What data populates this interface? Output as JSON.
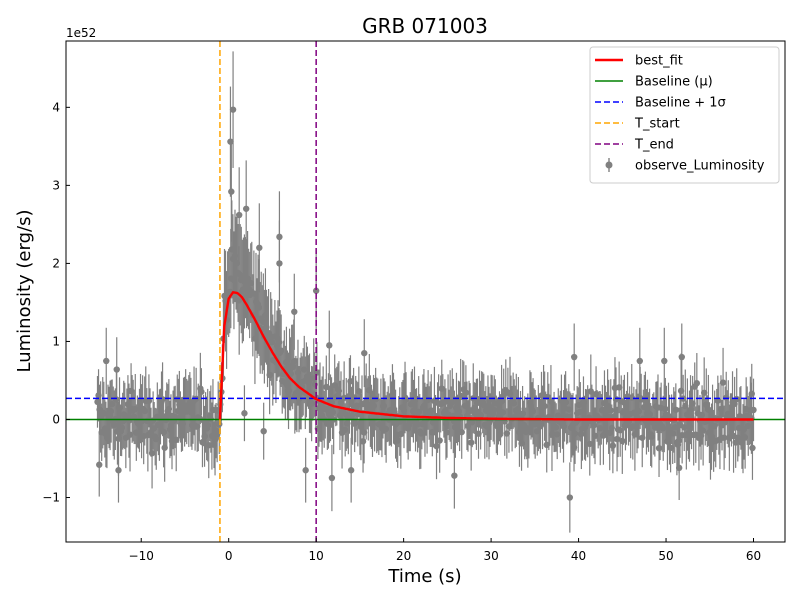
{
  "chart_data": {
    "type": "scatter",
    "title": "GRB 071003",
    "xlabel": "Time (s)",
    "ylabel": "Luminosity (erg/s)",
    "y_offset_label": "1e52",
    "xlim": [
      -18.6,
      63.6
    ],
    "ylim": [
      -1.57,
      4.85
    ],
    "x_ticks": [
      -10,
      0,
      10,
      20,
      30,
      40,
      50,
      60
    ],
    "x_tick_labels": [
      "−10",
      "0",
      "10",
      "20",
      "30",
      "40",
      "50",
      "60"
    ],
    "y_ticks": [
      -1,
      0,
      1,
      2,
      3,
      4
    ],
    "y_tick_labels": [
      "−1",
      "0",
      "1",
      "2",
      "3",
      "4"
    ],
    "grid": false,
    "legend_placement": "top-right",
    "legend": [
      {
        "label": "best_fit",
        "kind": "line",
        "color": "#ff0000",
        "dashed": false
      },
      {
        "label": "Baseline (μ)",
        "kind": "line",
        "color": "#008000",
        "dashed": false
      },
      {
        "label": "Baseline + 1σ",
        "kind": "line",
        "color": "#0000ff",
        "dashed": true
      },
      {
        "label": "T_start",
        "kind": "line",
        "color": "#ffa500",
        "dashed": true
      },
      {
        "label": "T_end",
        "kind": "line",
        "color": "#800080",
        "dashed": true
      },
      {
        "label": "observe_Luminosity",
        "kind": "errorbar",
        "color": "#808080",
        "dashed": false
      }
    ],
    "baseline": 0.0,
    "baseline_plus_sigma": 0.27,
    "t_start": -1.0,
    "t_end": 10.0,
    "best_fit": {
      "name": "best_fit",
      "x": [
        -1.0,
        -0.5,
        0.0,
        0.5,
        1.0,
        1.5,
        2.0,
        3.0,
        4.0,
        5.0,
        6.0,
        7.0,
        8.0,
        10.0,
        12.0,
        15.0,
        20.0,
        25.0,
        30.0,
        40.0,
        50.0,
        60.0
      ],
      "y": [
        0.0,
        1.2,
        1.55,
        1.63,
        1.62,
        1.57,
        1.48,
        1.28,
        1.06,
        0.86,
        0.68,
        0.53,
        0.42,
        0.26,
        0.17,
        0.1,
        0.04,
        0.02,
        0.01,
        0.0,
        0.0,
        0.0
      ]
    },
    "observed": {
      "name": "observe_Luminosity",
      "color": "#808080",
      "x_range": [
        -15,
        60
      ],
      "notable_points": [
        {
          "x": -14.8,
          "y": -0.58
        },
        {
          "x": -12.6,
          "y": -0.65
        },
        {
          "x": -12.8,
          "y": 0.64
        },
        {
          "x": -14.0,
          "y": 0.75
        },
        {
          "x": 0.2,
          "y": 3.56
        },
        {
          "x": 0.5,
          "y": 3.97
        },
        {
          "x": 0.3,
          "y": 2.92
        },
        {
          "x": 1.2,
          "y": 2.62
        },
        {
          "x": 2.0,
          "y": 2.7
        },
        {
          "x": 3.5,
          "y": 2.2
        },
        {
          "x": 5.8,
          "y": 2.34
        },
        {
          "x": 5.8,
          "y": 2.0
        },
        {
          "x": 1.8,
          "y": 0.08
        },
        {
          "x": 4.0,
          "y": -0.15
        },
        {
          "x": 7.5,
          "y": 1.38
        },
        {
          "x": 8.8,
          "y": -0.65
        },
        {
          "x": 10.0,
          "y": 1.65
        },
        {
          "x": 11.5,
          "y": 0.95
        },
        {
          "x": 11.8,
          "y": -0.75
        },
        {
          "x": 14.0,
          "y": -0.65
        },
        {
          "x": 15.5,
          "y": 0.85
        },
        {
          "x": 25.8,
          "y": -0.72
        },
        {
          "x": 39.0,
          "y": -1.0
        },
        {
          "x": 39.5,
          "y": 0.8
        },
        {
          "x": 47.0,
          "y": 0.75
        },
        {
          "x": 49.8,
          "y": 0.75
        },
        {
          "x": 51.5,
          "y": -0.62
        },
        {
          "x": 51.8,
          "y": 0.8
        },
        {
          "x": 59.8,
          "y": 0.33
        }
      ]
    }
  }
}
